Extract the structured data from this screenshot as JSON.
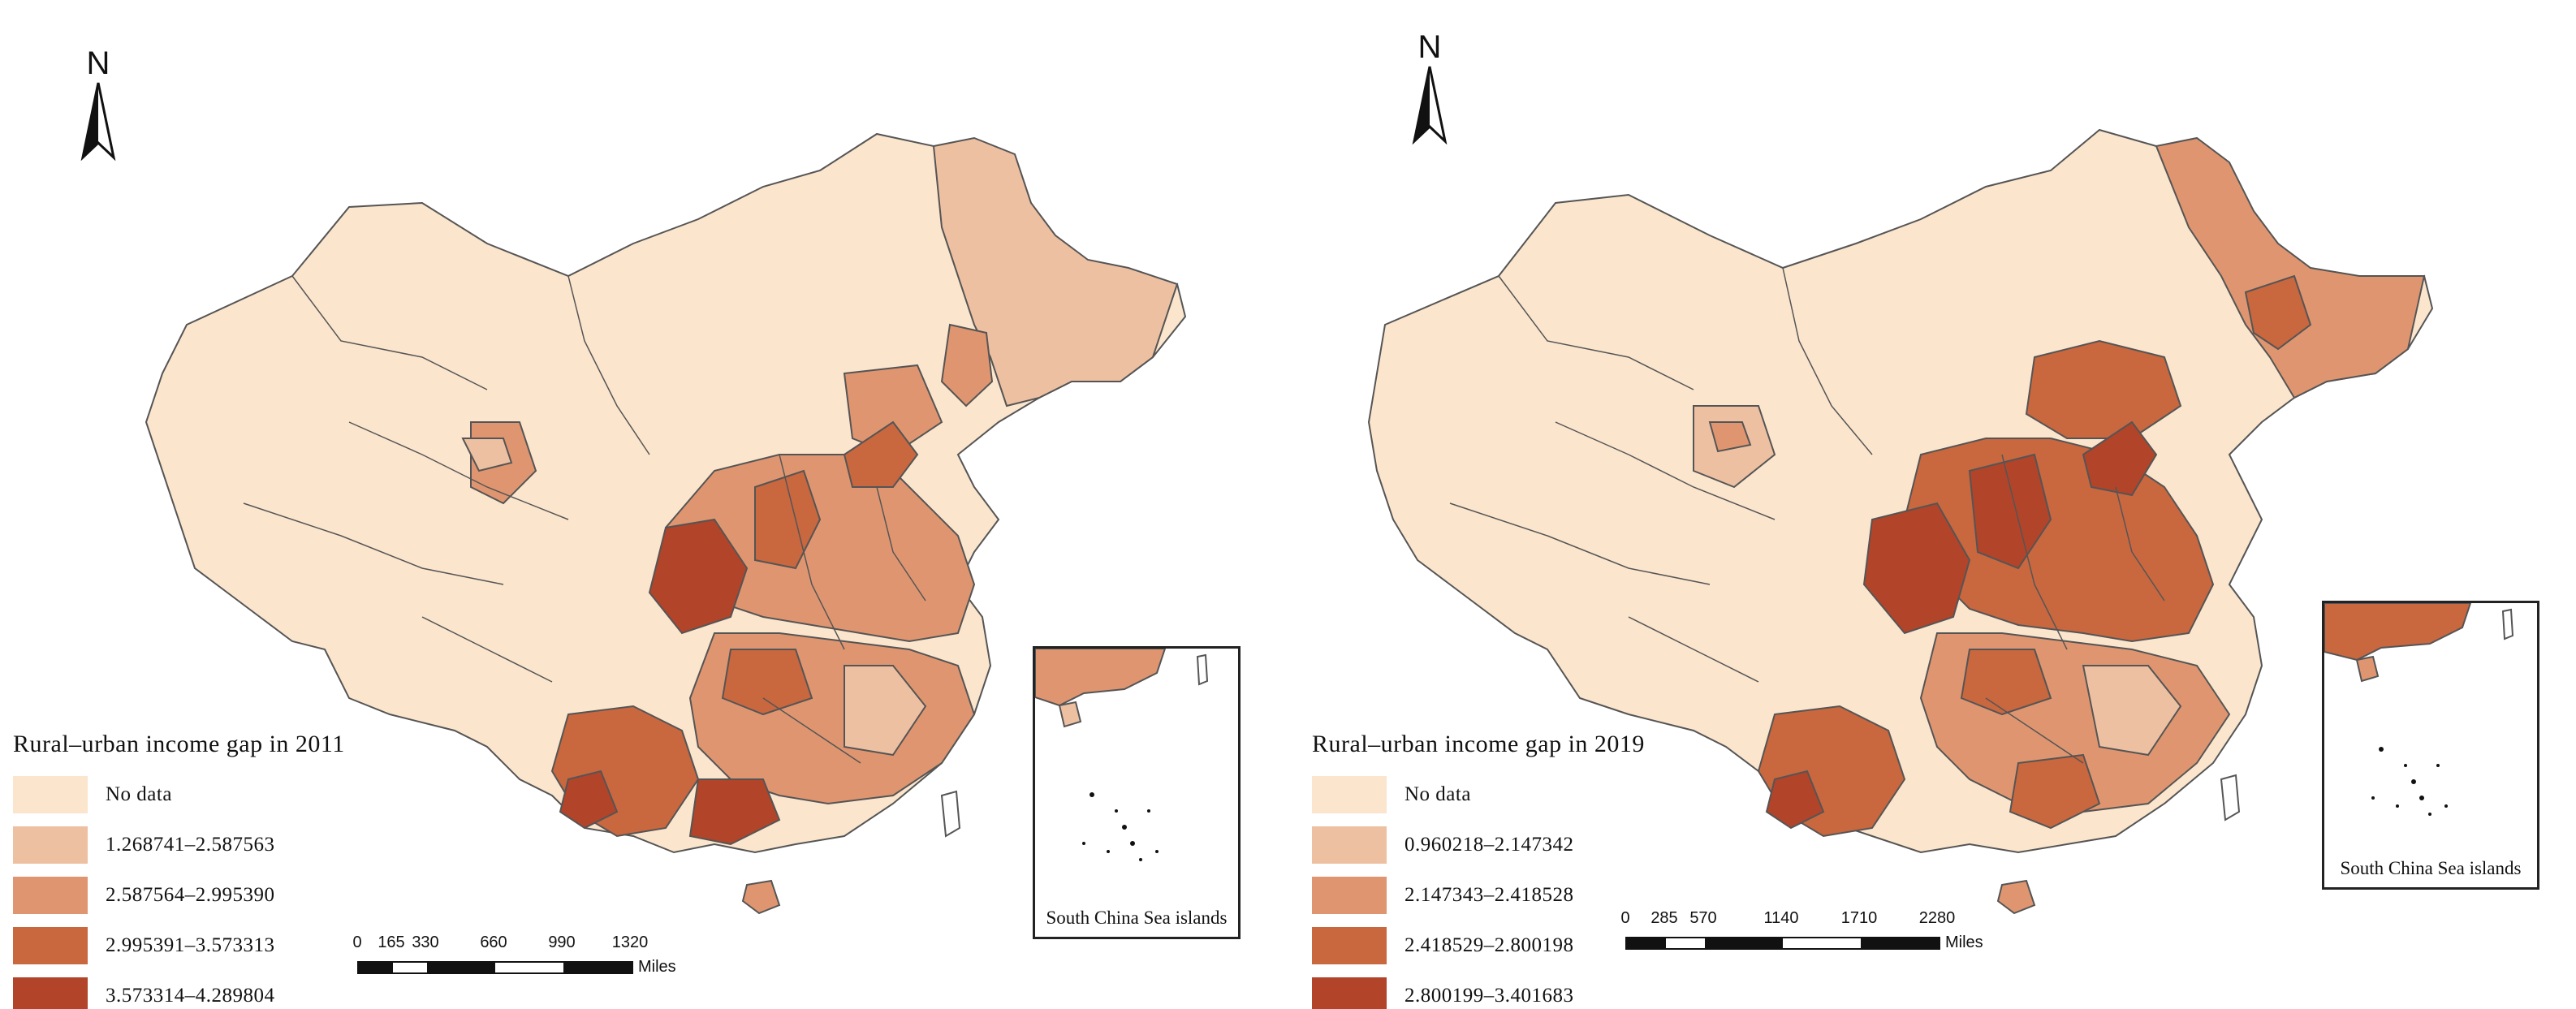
{
  "colors": {
    "background": "#ffffff",
    "no_data": "#fbe5cd",
    "class1": "#eec0a2",
    "class2": "#df9670",
    "class3": "#c9673f",
    "class4": "#b2442a",
    "border": "#555555"
  },
  "panels": [
    {
      "north_label": "N",
      "legend": {
        "title": "Rural–urban income gap in 2011",
        "items": [
          {
            "label": "No data",
            "color": "#fbe5cd"
          },
          {
            "label": "1.268741–2.587563",
            "color": "#eec0a2"
          },
          {
            "label": "2.587564–2.995390",
            "color": "#df9670"
          },
          {
            "label": "2.995391–3.573313",
            "color": "#c9673f"
          },
          {
            "label": "3.573314–4.289804",
            "color": "#b2442a"
          }
        ]
      },
      "scale": {
        "ticks": [
          "0",
          "165",
          "330",
          "660",
          "990",
          "1320"
        ],
        "unit": "Miles"
      },
      "inset_label": "South China Sea islands"
    },
    {
      "north_label": "N",
      "legend": {
        "title": "Rural–urban  income gap in 2019",
        "items": [
          {
            "label": "No data",
            "color": "#fbe5cd"
          },
          {
            "label": "0.960218–2.147342",
            "color": "#eec0a2"
          },
          {
            "label": "2.147343–2.418528",
            "color": "#df9670"
          },
          {
            "label": "2.418529–2.800198",
            "color": "#c9673f"
          },
          {
            "label": "2.800199–3.401683",
            "color": "#b2442a"
          }
        ]
      },
      "scale": {
        "ticks": [
          "0",
          "285",
          "570",
          "1140",
          "1710",
          "2280"
        ],
        "unit": "Miles"
      },
      "inset_label": "South China Sea islands"
    }
  ]
}
